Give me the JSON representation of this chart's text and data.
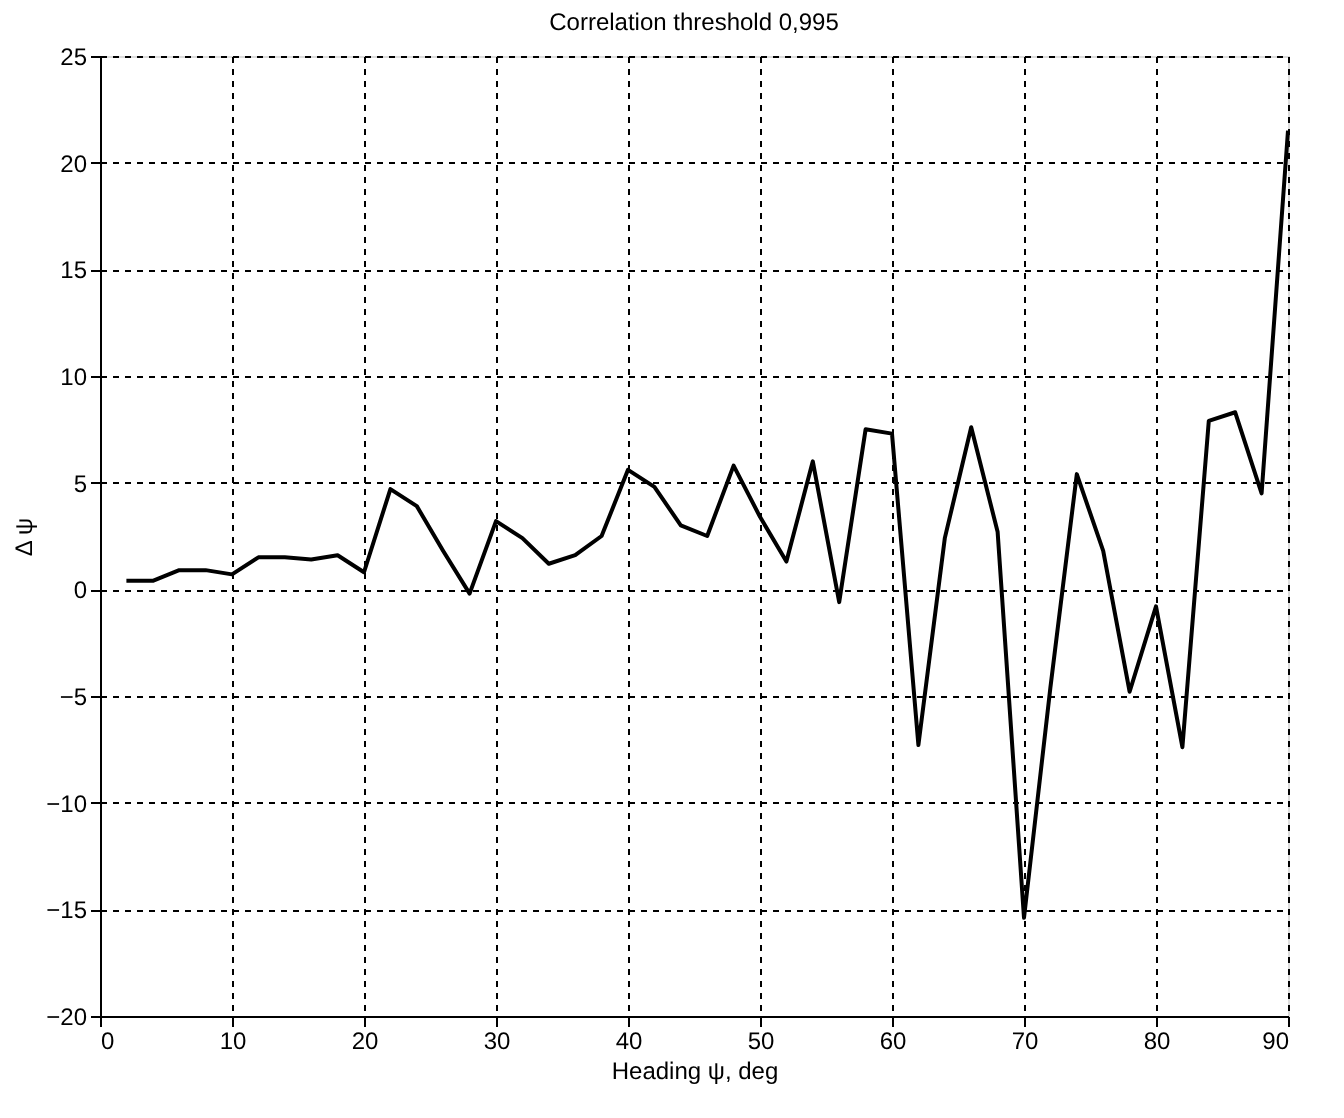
{
  "chart_data": {
    "type": "line",
    "title": "Correlation threshold 0,995",
    "xlabel": "Heading ψ, deg",
    "ylabel": "Δ ψ",
    "x": [
      2,
      4,
      6,
      8,
      10,
      12,
      14,
      16,
      18,
      20,
      22,
      24,
      26,
      28,
      30,
      32,
      34,
      36,
      38,
      40,
      42,
      44,
      46,
      48,
      50,
      52,
      54,
      56,
      58,
      60,
      62,
      64,
      66,
      68,
      70,
      72,
      74,
      76,
      78,
      80,
      82,
      84,
      86,
      88,
      90
    ],
    "series": [
      {
        "color": "#000000",
        "values": [
          0.4,
          0.4,
          0.9,
          0.9,
          0.7,
          1.5,
          1.5,
          1.4,
          1.6,
          0.8,
          4.7,
          3.9,
          1.8,
          -0.2,
          3.2,
          2.4,
          1.2,
          1.6,
          2.5,
          5.6,
          4.8,
          3.0,
          2.5,
          5.8,
          3.4,
          1.3,
          6.0,
          -0.6,
          7.5,
          7.3,
          -7.3,
          2.4,
          7.6,
          2.7,
          -15.4,
          -4.6,
          5.4,
          1.8,
          -4.8,
          -0.8,
          -7.4,
          7.9,
          8.3,
          4.5,
          21.5
        ]
      }
    ],
    "xlim": [
      0,
      90
    ],
    "xticks": [
      0,
      10,
      20,
      30,
      40,
      50,
      60,
      70,
      80,
      90
    ],
    "ylim": [
      -20,
      25
    ],
    "yticks": [
      -20,
      -15,
      -10,
      -5,
      0,
      5,
      10,
      15,
      20,
      25
    ],
    "grid": true,
    "line_style": "solid",
    "marker": "none",
    "legend": false
  }
}
